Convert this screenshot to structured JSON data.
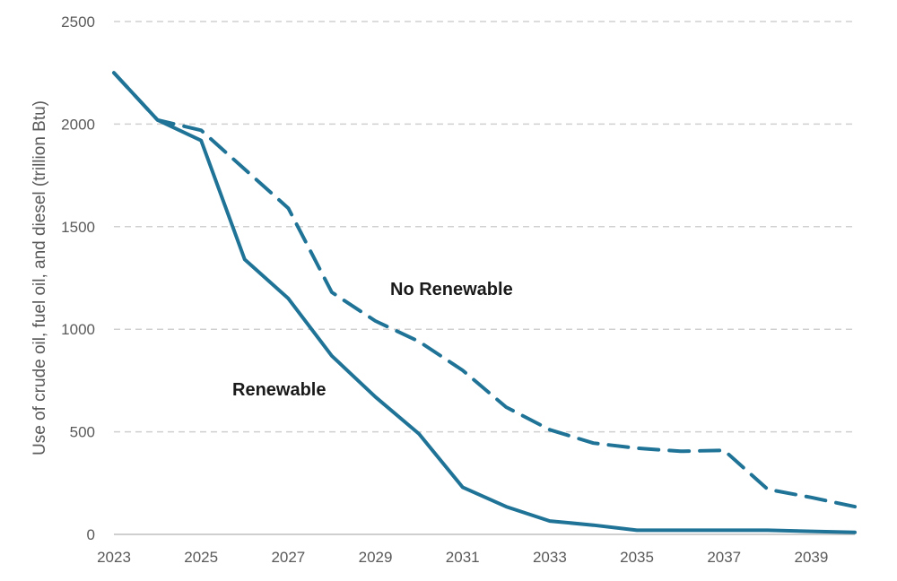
{
  "chart_data": {
    "type": "line",
    "ylabel": "Use of crude oil, fuel oil, and diesel (trillion Btu)",
    "xlabel": "",
    "xlim": [
      2023,
      2040
    ],
    "ylim": [
      0,
      2500
    ],
    "x_ticks": [
      2023,
      2025,
      2027,
      2029,
      2031,
      2033,
      2035,
      2037,
      2039
    ],
    "y_ticks": [
      0,
      500,
      1000,
      1500,
      2000,
      2500
    ],
    "grid": "horizontal dashed",
    "color": "#1f7396",
    "series": [
      {
        "name": "Renewable",
        "style": "solid",
        "x": [
          2023,
          2024,
          2025,
          2026,
          2027,
          2028,
          2029,
          2030,
          2031,
          2032,
          2033,
          2034,
          2035,
          2036,
          2037,
          2038,
          2039,
          2040
        ],
        "y": [
          2250,
          2020,
          1920,
          1340,
          1150,
          870,
          670,
          490,
          230,
          135,
          65,
          45,
          20,
          20,
          20,
          20,
          15,
          10
        ]
      },
      {
        "name": "No Renewable",
        "style": "dashed",
        "x": [
          2023,
          2024,
          2025,
          2026,
          2027,
          2028,
          2029,
          2030,
          2031,
          2032,
          2033,
          2034,
          2035,
          2036,
          2037,
          2038,
          2039,
          2040
        ],
        "y": [
          2250,
          2020,
          1970,
          1780,
          1590,
          1180,
          1040,
          940,
          800,
          620,
          510,
          445,
          420,
          405,
          410,
          220,
          180,
          135
        ]
      }
    ]
  }
}
